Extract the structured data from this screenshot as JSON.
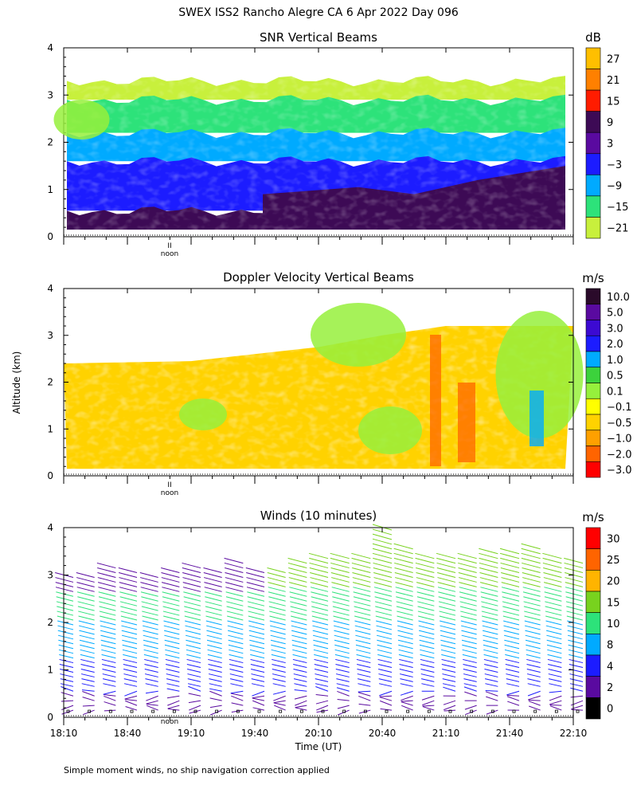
{
  "header": {
    "title": "SWEX ISS2 Rancho Alegre CA    6 Apr 2022 Day 096"
  },
  "footer": {
    "note": "Simple moment winds, no ship navigation correction applied"
  },
  "noon_label": "noon",
  "noon_marker": "II",
  "chart_data": [
    {
      "type": "heatmap",
      "title": "SNR Vertical Beams",
      "ylim": [
        0,
        4
      ],
      "yticks": [
        "0",
        "1",
        "2",
        "3",
        "4"
      ],
      "colorbar": {
        "unit": "dB",
        "labels": [
          "27",
          "21",
          "15",
          "9",
          "3",
          "−3",
          "−9",
          "−15",
          "−21"
        ],
        "colors": [
          "#ffbf00",
          "#ff8000",
          "#ff1c00",
          "#3d0a55",
          "#5a0aa0",
          "#1c1cff",
          "#00aaff",
          "#2de27a",
          "#c8f03c"
        ]
      },
      "layers": [
        {
          "alt_range": [
            0.15,
            0.55
          ],
          "class": "9",
          "color": "#3d0a55"
        },
        {
          "alt_range": [
            0.55,
            1.6
          ],
          "class": "−3",
          "color": "#1c1cff"
        },
        {
          "alt_range": [
            1.6,
            2.2
          ],
          "class": "−9",
          "color": "#00aaff"
        },
        {
          "alt_range": [
            2.2,
            2.9
          ],
          "class": "−15",
          "color": "#2de27a"
        },
        {
          "alt_range": [
            2.9,
            3.3
          ],
          "class": "−21",
          "color": "#c8f03c"
        }
      ]
    },
    {
      "type": "heatmap",
      "title": "Doppler Velocity Vertical Beams",
      "ylabel": "Altitude (km)",
      "ylim": [
        0,
        4
      ],
      "yticks": [
        "0",
        "1",
        "2",
        "3",
        "4"
      ],
      "colorbar": {
        "unit": "m/s",
        "labels": [
          "10.0",
          "5.0",
          "3.0",
          "2.0",
          "1.0",
          "0.5",
          "0.1",
          "−0.1",
          "−0.5",
          "−1.0",
          "−2.0",
          "−3.0"
        ],
        "colors": [
          "#2a0a2a",
          "#5a0aa0",
          "#3c0ad2",
          "#1c1cff",
          "#00aaff",
          "#3cd23c",
          "#96f03c",
          "#ffff00",
          "#ffd200",
          "#ffa000",
          "#ff6400",
          "#ff0000"
        ]
      },
      "time_range": [
        "18:10",
        "22:10"
      ],
      "top_altitude": [
        {
          "time": "18:10",
          "km": 2.4
        },
        {
          "time": "19:10",
          "km": 2.45
        },
        {
          "time": "19:40",
          "km": 2.6
        },
        {
          "time": "20:10",
          "km": 2.75
        },
        {
          "time": "20:40",
          "km": 3.0
        },
        {
          "time": "21:10",
          "km": 3.2
        },
        {
          "time": "22:10",
          "km": 3.2
        }
      ]
    },
    {
      "type": "scatter",
      "title": "Winds (10 minutes)",
      "xlabel": "Time (UT)",
      "ylim": [
        0,
        4
      ],
      "yticks": [
        "0",
        "1",
        "2",
        "3",
        "4"
      ],
      "xticks": [
        "18:10",
        "18:40",
        "19:10",
        "19:40",
        "20:10",
        "20:40",
        "21:10",
        "21:40",
        "22:10"
      ],
      "colorbar": {
        "unit": "m/s",
        "labels": [
          "30",
          "25",
          "20",
          "15",
          "10",
          "8",
          "4",
          "2",
          "0"
        ],
        "colors": [
          "#ff0000",
          "#ff6400",
          "#ffb400",
          "#78d21e",
          "#2de27a",
          "#00aaff",
          "#1c1cff",
          "#5a0aa0",
          "#000000"
        ]
      },
      "profiles": [
        {
          "time": "18:10",
          "top_km": 2.9
        },
        {
          "time": "18:20",
          "top_km": 2.9
        },
        {
          "time": "18:30",
          "top_km": 3.1
        },
        {
          "time": "18:40",
          "top_km": 3.0
        },
        {
          "time": "18:50",
          "top_km": 2.9
        },
        {
          "time": "19:00",
          "top_km": 3.0
        },
        {
          "time": "19:10",
          "top_km": 3.1
        },
        {
          "time": "19:20",
          "top_km": 3.0
        },
        {
          "time": "19:30",
          "top_km": 3.2
        },
        {
          "time": "19:40",
          "top_km": 3.0
        },
        {
          "time": "19:50",
          "top_km": 3.0
        },
        {
          "time": "20:00",
          "top_km": 3.2
        },
        {
          "time": "20:10",
          "top_km": 3.25
        },
        {
          "time": "20:20",
          "top_km": 3.3
        },
        {
          "time": "20:30",
          "top_km": 3.25
        },
        {
          "time": "20:40",
          "top_km": 3.9
        },
        {
          "time": "20:50",
          "top_km": 3.5
        },
        {
          "time": "21:00",
          "top_km": 3.3
        },
        {
          "time": "21:10",
          "top_km": 3.3
        },
        {
          "time": "21:20",
          "top_km": 3.3
        },
        {
          "time": "21:30",
          "top_km": 3.4
        },
        {
          "time": "21:40",
          "top_km": 3.4
        },
        {
          "time": "21:50",
          "top_km": 3.45
        },
        {
          "time": "22:00",
          "top_km": 3.3
        },
        {
          "time": "22:10",
          "top_km": 3.2
        }
      ]
    }
  ]
}
